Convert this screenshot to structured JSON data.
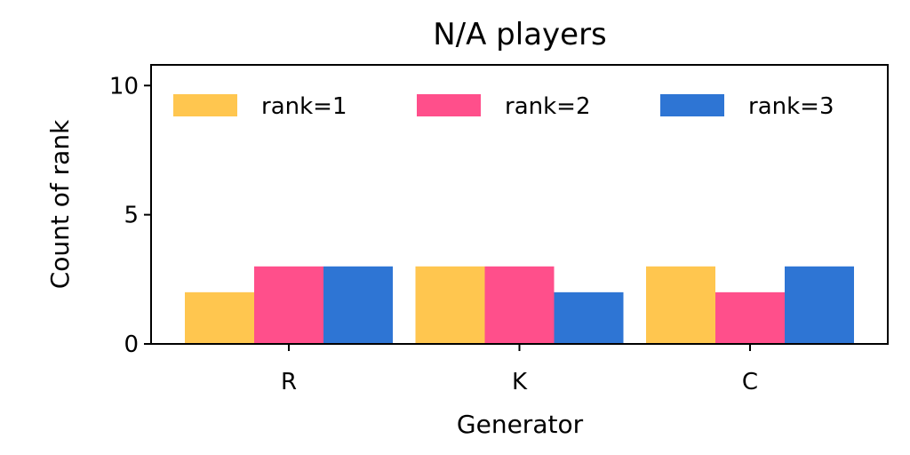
{
  "chart_data": {
    "type": "bar",
    "title": "N/A players",
    "xlabel": "Generator",
    "ylabel": "Count of rank",
    "categories": [
      "R",
      "K",
      "C"
    ],
    "series": [
      {
        "name": "rank=1",
        "values": [
          2,
          3,
          3
        ],
        "color": "#FFC64F"
      },
      {
        "name": "rank=2",
        "values": [
          3,
          3,
          2
        ],
        "color": "#FF4F8B"
      },
      {
        "name": "rank=3",
        "values": [
          3,
          2,
          3
        ],
        "color": "#2E75D4"
      }
    ],
    "ylim": [
      0,
      10.8
    ],
    "yticks": [
      0,
      5,
      10
    ],
    "grid": false,
    "legend": {
      "placement": "top",
      "columns": 3
    }
  }
}
